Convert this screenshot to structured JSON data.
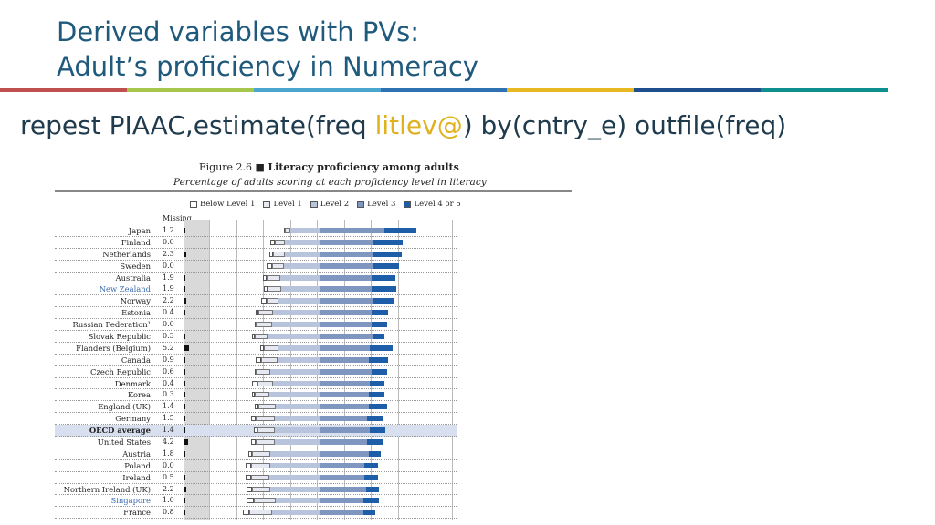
{
  "title": {
    "line1": "Derived variables with PVs:",
    "line2": "Adult’s proficiency in Numeracy"
  },
  "stripe_colors": [
    "#c0504d",
    "#a6c64c",
    "#4aa5cf",
    "#2f72b3",
    "#e8b822",
    "#1f4e8c",
    "#0f8e8e"
  ],
  "command": {
    "prefix": "repest PIAAC,estimate(freq ",
    "highlight": "litlev@",
    "suffix": ") by(cntry_e) outfile(freq)"
  },
  "figure": {
    "number": "Figure 2.6 ■",
    "title": "Literacy proficiency among adults",
    "subtitle": "Percentage of adults scoring at each proficiency level in literacy",
    "missing_label": "Missing",
    "legend": [
      "Below Level 1",
      "Level 1",
      "Level 2",
      "Level 3",
      "Level 4 or 5"
    ]
  },
  "countries": [
    {
      "name": "Japan",
      "missing": "1.2",
      "levels": [
        1,
        4,
        22,
        49,
        24
      ]
    },
    {
      "name": "Finland",
      "missing": "0.0",
      "levels": [
        3,
        8,
        26,
        41,
        22
      ]
    },
    {
      "name": "Netherlands",
      "missing": "2.3",
      "levels": [
        3,
        9,
        26,
        41,
        21
      ]
    },
    {
      "name": "Sweden",
      "missing": "0.0",
      "levels": [
        4,
        9,
        27,
        40,
        20
      ]
    },
    {
      "name": "Australia",
      "missing": "1.9",
      "levels": [
        3,
        10,
        30,
        39,
        18
      ]
    },
    {
      "name": "New Zealand",
      "missing": "1.9",
      "levels": [
        3,
        10,
        29,
        39,
        19
      ],
      "blue": true
    },
    {
      "name": "Norway",
      "missing": "2.2",
      "levels": [
        4,
        9,
        31,
        40,
        16
      ]
    },
    {
      "name": "Estonia",
      "missing": "0.4",
      "levels": [
        2,
        11,
        35,
        39,
        13
      ]
    },
    {
      "name": "Russian Federation¹",
      "missing": "0.0",
      "levels": [
        1,
        12,
        36,
        39,
        12
      ]
    },
    {
      "name": "Slovak Republic",
      "missing": "0.3",
      "levels": [
        2,
        10,
        39,
        40,
        9
      ]
    },
    {
      "name": "Flanders (Belgium)",
      "missing": "5.2",
      "levels": [
        3,
        11,
        31,
        38,
        17
      ]
    },
    {
      "name": "Canada",
      "missing": "0.9",
      "levels": [
        4,
        12,
        32,
        37,
        15
      ]
    },
    {
      "name": "Czech Republic",
      "missing": "0.6",
      "levels": [
        1,
        11,
        37,
        39,
        12
      ]
    },
    {
      "name": "Denmark",
      "missing": "0.4",
      "levels": [
        4,
        12,
        35,
        38,
        11
      ]
    },
    {
      "name": "Korea",
      "missing": "0.3",
      "levels": [
        2,
        11,
        38,
        37,
        12
      ]
    },
    {
      "name": "England (UK)",
      "missing": "1.4",
      "levels": [
        3,
        13,
        33,
        37,
        14
      ]
    },
    {
      "name": "Germany",
      "missing": "1.5",
      "levels": [
        4,
        14,
        34,
        36,
        12
      ]
    },
    {
      "name": "OECD average",
      "missing": "1.4",
      "levels": [
        3,
        13,
        34,
        38,
        12
      ],
      "bold": true,
      "highlight": true
    },
    {
      "name": "United States",
      "missing": "4.2",
      "levels": [
        4,
        14,
        34,
        36,
        12
      ]
    },
    {
      "name": "Austria",
      "missing": "1.8",
      "levels": [
        3,
        14,
        37,
        37,
        9
      ]
    },
    {
      "name": "Poland",
      "missing": "0.0",
      "levels": [
        4,
        15,
        37,
        34,
        10
      ]
    },
    {
      "name": "Ireland",
      "missing": "0.5",
      "levels": [
        4,
        14,
        38,
        34,
        10
      ]
    },
    {
      "name": "Northern Ireland (UK)",
      "missing": "2.2",
      "levels": [
        4,
        14,
        37,
        35,
        10
      ]
    },
    {
      "name": "Singapore",
      "missing": "1.0",
      "levels": [
        5,
        17,
        33,
        33,
        12
      ],
      "blue": true
    },
    {
      "name": "France",
      "missing": "0.8",
      "levels": [
        5,
        17,
        36,
        33,
        9
      ]
    }
  ]
}
